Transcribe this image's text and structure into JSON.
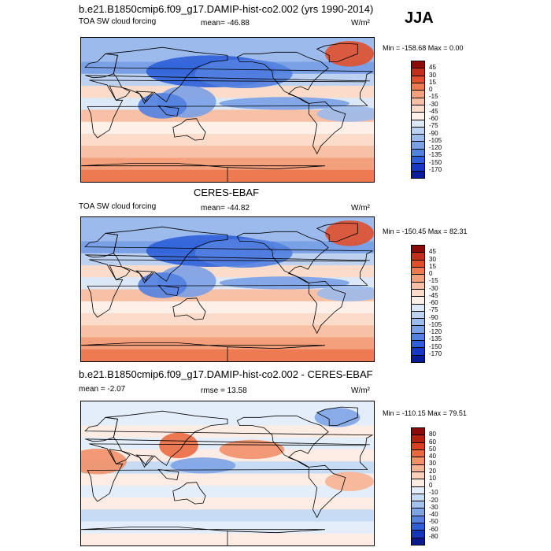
{
  "season": "JJA",
  "panels": [
    {
      "title": "b.e21.B1850cmip6.f09_g17.DAMIP-hist-co2.002 (yrs 1990-2014)",
      "left_label": "TOA SW cloud forcing",
      "mid_label": "mean= -46.88",
      "units": "W/m²",
      "minmax": "Min = -158.68 Max =   0.00",
      "colorbar": {
        "ticks": [
          "45",
          "30",
          "15",
          "0",
          "-15",
          "-30",
          "-45",
          "-60",
          "-75",
          "-90",
          "-105",
          "-120",
          "-135",
          "-150",
          "-170"
        ],
        "colors": [
          "#8b0a0a",
          "#c0301a",
          "#e0502c",
          "#ee7a52",
          "#f5a07c",
          "#f8c0a4",
          "#fbdccb",
          "#fdf0e8",
          "#dde8f6",
          "#bdd2f0",
          "#9cbaeb",
          "#7aa0e6",
          "#5281e0",
          "#2e5fd8",
          "#1838c4",
          "#0a1c9a"
        ]
      }
    },
    {
      "title": "CERES-EBAF",
      "left_label": "TOA SW cloud forcing",
      "mid_label": "mean= -44.82",
      "units": "W/m²",
      "minmax": "Min = -150.45 Max =  82.31",
      "colorbar": {
        "ticks": [
          "45",
          "30",
          "15",
          "0",
          "-15",
          "-30",
          "-45",
          "-60",
          "-75",
          "-90",
          "-105",
          "-120",
          "-135",
          "-150",
          "-170"
        ],
        "colors": [
          "#8b0a0a",
          "#c0301a",
          "#e0502c",
          "#ee7a52",
          "#f5a07c",
          "#f8c0a4",
          "#fbdccb",
          "#fdf0e8",
          "#dde8f6",
          "#bdd2f0",
          "#9cbaeb",
          "#7aa0e6",
          "#5281e0",
          "#2e5fd8",
          "#1838c4",
          "#0a1c9a"
        ]
      }
    },
    {
      "title": "b.e21.B1850cmip6.f09_g17.DAMIP-hist-co2.002 - CERES-EBAF",
      "left_label": "mean =  -2.07",
      "mid_label": "rmse =  13.58",
      "units": "W/m²",
      "minmax": "Min = -110.15 Max =  79.51",
      "colorbar": {
        "ticks": [
          "80",
          "60",
          "50",
          "40",
          "30",
          "20",
          "10",
          "0",
          "-10",
          "-20",
          "-30",
          "-40",
          "-50",
          "-60",
          "-80"
        ],
        "colors": [
          "#8b0a0a",
          "#b2200e",
          "#d84020",
          "#ea6a40",
          "#f39068",
          "#f7b394",
          "#fad0bc",
          "#fcece4",
          "#e4eefa",
          "#c6dbf4",
          "#a4c2ee",
          "#7ea4e6",
          "#5682de",
          "#305ed4",
          "#1636b8",
          "#0a1a8c"
        ]
      }
    }
  ]
}
